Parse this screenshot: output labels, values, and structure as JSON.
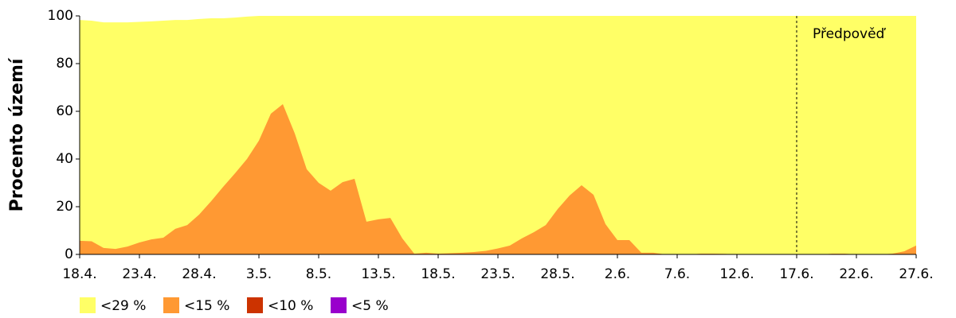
{
  "chart_data": {
    "type": "area",
    "y_label": "Procento území",
    "categories": [
      "18.4.",
      null,
      null,
      null,
      null,
      "23.4.",
      null,
      null,
      null,
      null,
      "28.4.",
      null,
      null,
      null,
      null,
      "3.5.",
      null,
      null,
      null,
      null,
      "8.5.",
      null,
      null,
      null,
      null,
      "13.5.",
      null,
      null,
      null,
      null,
      "18.5.",
      null,
      null,
      null,
      null,
      "23.5.",
      null,
      null,
      null,
      null,
      "28.5.",
      null,
      null,
      null,
      null,
      "2.6.",
      null,
      null,
      null,
      null,
      "7.6.",
      null,
      null,
      null,
      null,
      "12.6.",
      null,
      null,
      null,
      null,
      "17.6.",
      null,
      null,
      null,
      null,
      "22.6.",
      null,
      null,
      null,
      null,
      "27.6."
    ],
    "series": [
      {
        "name": "<29 %",
        "color": "#ffff66",
        "values": [
          98.3,
          98,
          97.3,
          97.3,
          97.3,
          97.5,
          97.7,
          98,
          98.3,
          98.3,
          98.7,
          99,
          99,
          99.3,
          99.7,
          100,
          100,
          100,
          100,
          100,
          100,
          100,
          100,
          100,
          100,
          100,
          100,
          100,
          100,
          100,
          100,
          100,
          100,
          100,
          100,
          100,
          100,
          100,
          100,
          100,
          100,
          100,
          100,
          100,
          100,
          100,
          100,
          100,
          100,
          100,
          100,
          100,
          100,
          100,
          100,
          100,
          100,
          100,
          100,
          100,
          100,
          100,
          100,
          100,
          100,
          100,
          100,
          100,
          100,
          100,
          100
        ]
      },
      {
        "name": "<15 %",
        "color": "#ff9933",
        "values": [
          5.7,
          5.5,
          2.7,
          2.3,
          3.3,
          5,
          6.3,
          7,
          10.7,
          12.3,
          16.7,
          22.3,
          28.3,
          34,
          40,
          47.7,
          59,
          63,
          50.7,
          35.7,
          30,
          26.7,
          30.3,
          31.7,
          13.7,
          14.7,
          15.3,
          6.7,
          0.3,
          0.7,
          0.3,
          0.5,
          0.7,
          1,
          1.5,
          2.5,
          3.7,
          6.7,
          9.3,
          12.3,
          19,
          24.7,
          29,
          25,
          12.7,
          6,
          6,
          0.7,
          0.7,
          0,
          0,
          0,
          0.3,
          0.3,
          0.2,
          0,
          0,
          0,
          0,
          0,
          0,
          0,
          0,
          0.3,
          0.3,
          0,
          0,
          0,
          0.3,
          1.3,
          3.7
        ]
      },
      {
        "name": "<10 %",
        "color": "#cc3300",
        "values": [
          0,
          0,
          0,
          0,
          0,
          0,
          0,
          0,
          0,
          0,
          0,
          0,
          0,
          0,
          0,
          0,
          0,
          0,
          0,
          0,
          0,
          0,
          0,
          0,
          0,
          0,
          0,
          0,
          0,
          0,
          0,
          0,
          0,
          0,
          0,
          0,
          0,
          0,
          0,
          0,
          0,
          0,
          0,
          0,
          0,
          0,
          0,
          0,
          0,
          0,
          0,
          0,
          0,
          0,
          0,
          0,
          0,
          0,
          0,
          0,
          0,
          0,
          0,
          0,
          0,
          0,
          0,
          0,
          0,
          0,
          0
        ]
      },
      {
        "name": "<5 %",
        "color": "#9900cc",
        "values": [
          0,
          0,
          0,
          0,
          0,
          0,
          0,
          0,
          0,
          0,
          0,
          0,
          0,
          0,
          0,
          0,
          0,
          0,
          0,
          0,
          0,
          0,
          0,
          0,
          0,
          0,
          0,
          0,
          0,
          0,
          0,
          0,
          0,
          0,
          0,
          0,
          0,
          0,
          0,
          0,
          0,
          0,
          0,
          0,
          0,
          0,
          0,
          0,
          0,
          0,
          0,
          0,
          0,
          0,
          0,
          0,
          0,
          0,
          0,
          0,
          0,
          0,
          0,
          0,
          0,
          0,
          0,
          0,
          0,
          0,
          0
        ]
      }
    ],
    "ylim": [
      0,
      100
    ],
    "yticks": [
      0,
      20,
      40,
      60,
      80,
      100
    ],
    "annotation": {
      "text": "Předpověď",
      "x": "17.6."
    }
  }
}
